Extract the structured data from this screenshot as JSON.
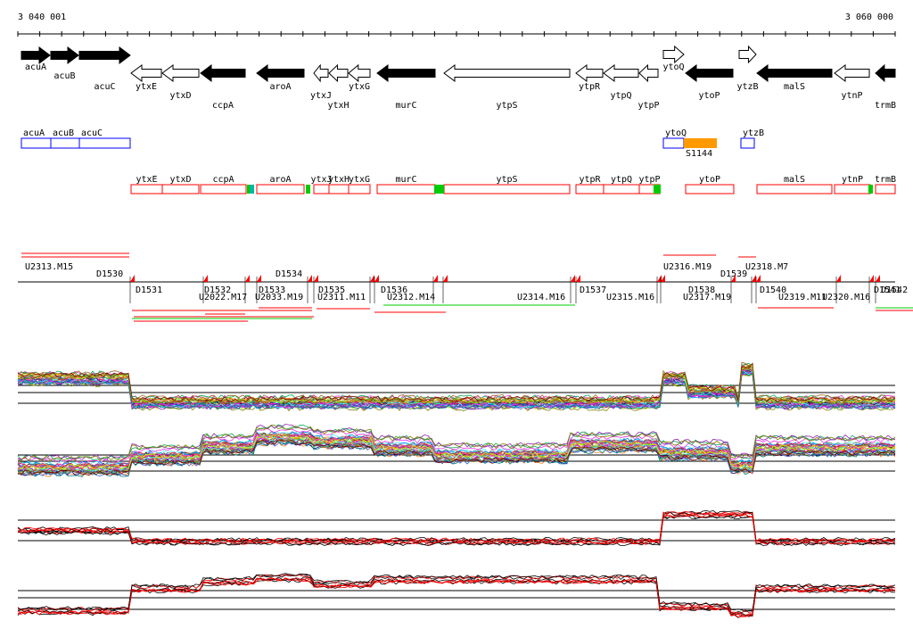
{
  "ruler": {
    "start_label": "3 040 001",
    "end_label": "3 060 000"
  },
  "genes": [
    {
      "name": "acuA",
      "dir": "+",
      "filled": true
    },
    {
      "name": "acuB",
      "dir": "+",
      "filled": true
    },
    {
      "name": "acuC",
      "dir": "+",
      "filled": true
    },
    {
      "name": "ytxE",
      "dir": "-",
      "filled": false
    },
    {
      "name": "ytxD",
      "dir": "-",
      "filled": false
    },
    {
      "name": "ccpA",
      "dir": "-",
      "filled": true
    },
    {
      "name": "aroA",
      "dir": "-",
      "filled": true
    },
    {
      "name": "ytxJ",
      "dir": "-",
      "filled": false
    },
    {
      "name": "ytxH",
      "dir": "-",
      "filled": false
    },
    {
      "name": "ytxG",
      "dir": "-",
      "filled": false
    },
    {
      "name": "murC",
      "dir": "-",
      "filled": true
    },
    {
      "name": "ytpS",
      "dir": "-",
      "filled": false
    },
    {
      "name": "ytpR",
      "dir": "-",
      "filled": false
    },
    {
      "name": "ytpQ",
      "dir": "-",
      "filled": false
    },
    {
      "name": "ytpP",
      "dir": "-",
      "filled": false
    },
    {
      "name": "ytoQ",
      "dir": "+",
      "filled": false
    },
    {
      "name": "ytoP",
      "dir": "-",
      "filled": true
    },
    {
      "name": "ytzB",
      "dir": "+",
      "filled": false
    },
    {
      "name": "malS",
      "dir": "-",
      "filled": true
    },
    {
      "name": "ytnP",
      "dir": "-",
      "filled": false
    },
    {
      "name": "trmB",
      "dir": "-",
      "filled": true
    }
  ],
  "blue_boxes": [
    "acuA",
    "acuB",
    "acuC",
    "ytoQ",
    "ytzB"
  ],
  "orange_feature": {
    "label": "S1144",
    "color": "#ff9900"
  },
  "red_boxes": [
    "ytxE",
    "ytxD",
    "ccpA",
    "aroA",
    "ytxJ",
    "ytxH",
    "ytxG",
    "murC",
    "ytpS",
    "ytpR",
    "ytpQ",
    "ytpP",
    "ytoP",
    "malS",
    "ytnP",
    "trmB"
  ],
  "segment_labels_top": [
    "U2313.M15",
    "D1530",
    "D1534",
    "U2316.M19",
    "D1539",
    "U2318.M7"
  ],
  "segment_labels_bottom": [
    "D1531",
    "D1532",
    "U2022.M17",
    "D1533",
    "U2033.M19",
    "D1535",
    "U2311.M11",
    "D1536",
    "U2312.M14",
    "U2314.M16",
    "D1537",
    "U2315.M16",
    "D1538",
    "U2317.M19",
    "D1540",
    "U2319.M11",
    "U2320.M16",
    "D1541",
    "D1542"
  ],
  "colors": {
    "red": "#ff0000",
    "blue": "#0000ff",
    "green": "#00cc00",
    "orange": "#ff9900",
    "black": "#000000"
  }
}
